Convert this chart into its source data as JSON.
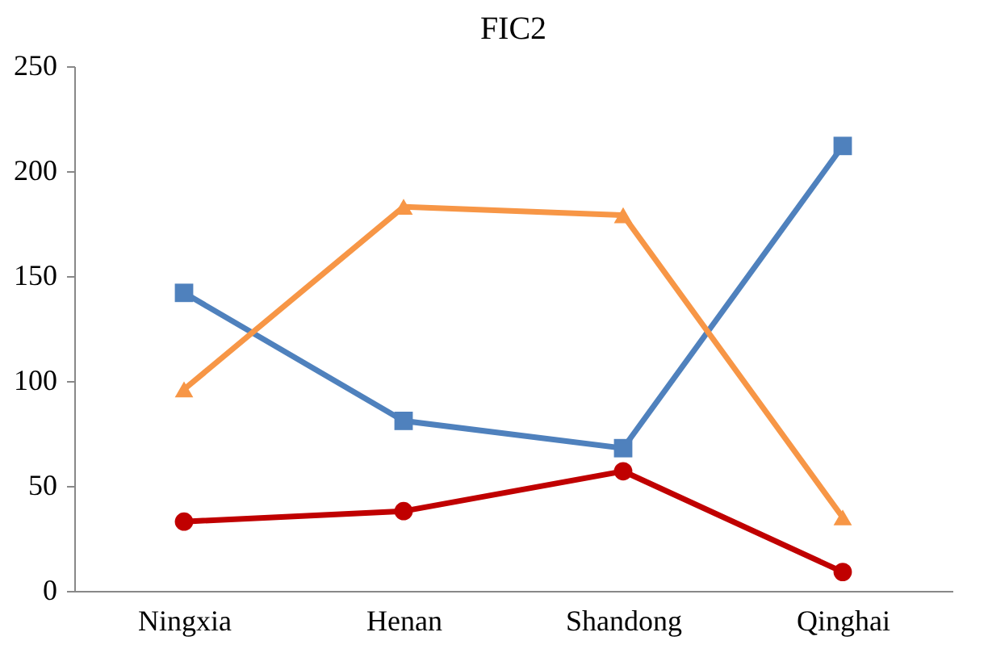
{
  "chart_data": {
    "type": "line",
    "title": "FIC2",
    "categories": [
      "Ningxia",
      "Henan",
      "Shandong",
      "Qinghai"
    ],
    "series": [
      {
        "color": "#4f81bd",
        "marker": "square",
        "values": [
          142,
          81,
          68,
          212
        ]
      },
      {
        "color": "#f79646",
        "marker": "triangle",
        "values": [
          96,
          183,
          179,
          35
        ]
      },
      {
        "color": "#c00000",
        "marker": "circle",
        "values": [
          33,
          38,
          57,
          9
        ]
      }
    ],
    "ylim": [
      0,
      250
    ],
    "yticks": [
      0,
      50,
      100,
      150,
      200,
      250
    ],
    "grid": false
  }
}
